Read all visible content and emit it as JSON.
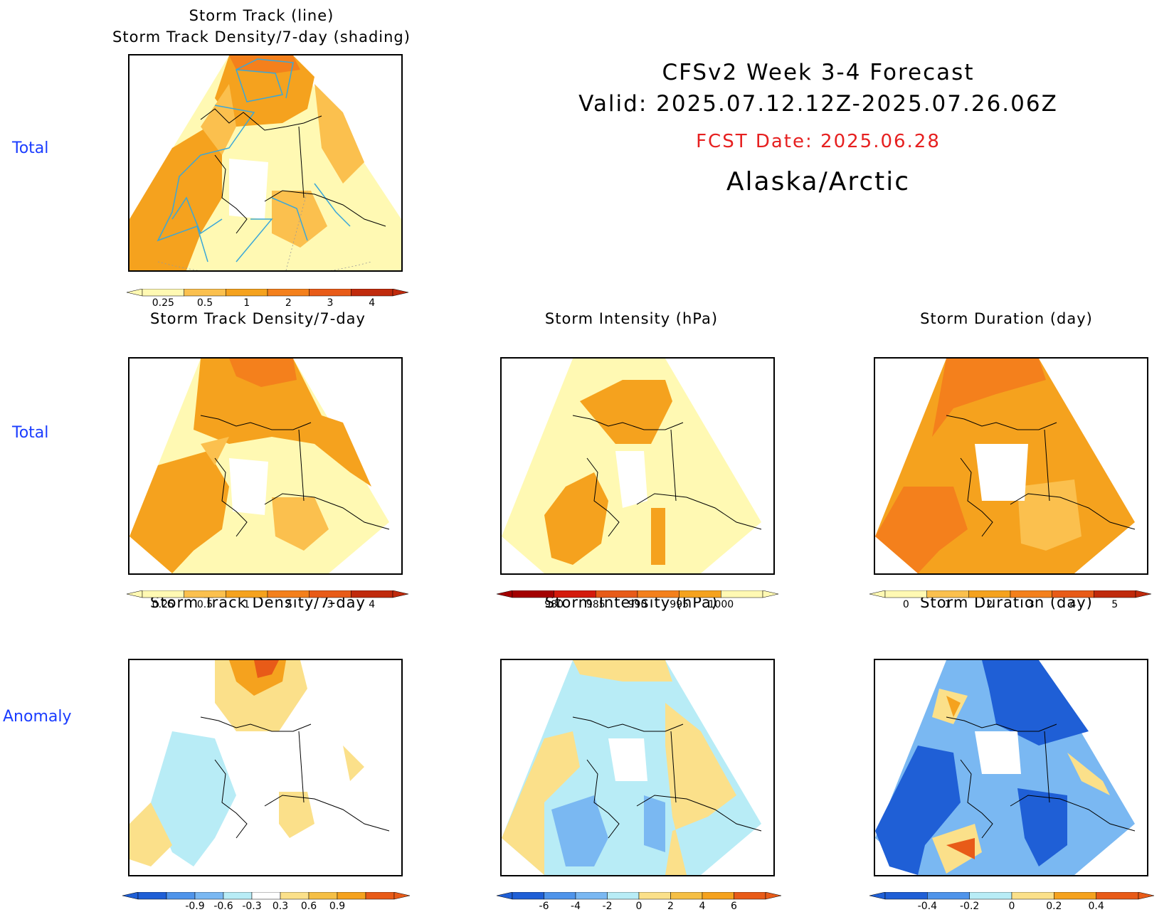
{
  "header": {
    "line1": "CFSv2 Week 3-4 Forecast",
    "line2": "Valid: 2025.07.12.12Z-2025.07.26.06Z",
    "fcst": "FCST Date: 2025.06.28",
    "region": "Alaska/Arctic"
  },
  "rows": {
    "r1": "Total",
    "r2": "Total",
    "r3": "Anomaly"
  },
  "panels": {
    "p1": {
      "title1": "Storm Track (line)",
      "title2": "Storm Track Density/7-day (shading)"
    },
    "p2": {
      "title": "Storm Track Density/7-day"
    },
    "p3": {
      "title": "Storm Intensity (hPa)"
    },
    "p4": {
      "title": "Storm Duration (day)"
    },
    "p5": {
      "title": "Storm Track Density/7-day"
    },
    "p6": {
      "title": "Storm Intensity (hPa)"
    },
    "p7": {
      "title": "Storm Duration (day)"
    }
  },
  "colorbars": {
    "density": {
      "ticks": [
        "0.25",
        "0.5",
        "1",
        "2",
        "3",
        "4"
      ],
      "colors": [
        "#fff9b3",
        "#fbc04e",
        "#f5a21e",
        "#f4801c",
        "#e85b18",
        "#c02a0c"
      ]
    },
    "intensity": {
      "ticks": [
        "980",
        "985",
        "990",
        "995",
        "1000"
      ],
      "colors": [
        "#a30000",
        "#d41a0c",
        "#e85b18",
        "#f4801c",
        "#f5a21e",
        "#fff9b3"
      ]
    },
    "duration": {
      "ticks": [
        "0",
        "1",
        "2",
        "3",
        "4",
        "5"
      ],
      "colors": [
        "#fff9b3",
        "#fbc04e",
        "#f5a21e",
        "#f4801c",
        "#e85b18",
        "#c02a0c"
      ]
    },
    "density_anom": {
      "ticks": [
        "-0.9",
        "-0.6",
        "-0.3",
        "0.3",
        "0.6",
        "0.9"
      ],
      "colors": [
        "#1f5fd6",
        "#4f94ea",
        "#7ab8f2",
        "#b8ecf6",
        "#ffffff",
        "#fbe08a",
        "#f5bf45",
        "#f5a21e",
        "#e85b18"
      ]
    },
    "intensity_anom": {
      "ticks": [
        "-6",
        "-4",
        "-2",
        "0",
        "2",
        "4",
        "6"
      ],
      "colors": [
        "#1f5fd6",
        "#4f94ea",
        "#7ab8f2",
        "#b8ecf6",
        "#fbe08a",
        "#f5bf45",
        "#f5a21e",
        "#e85b18"
      ]
    },
    "duration_anom": {
      "ticks": [
        "-0.4",
        "-0.2",
        "0",
        "0.2",
        "0.4"
      ],
      "colors": [
        "#1f5fd6",
        "#4f94ea",
        "#b8ecf6",
        "#fbe08a",
        "#f5a21e",
        "#e85b18"
      ]
    }
  },
  "colors": {
    "row_label": "#1a3cff",
    "fcst_date": "#e62020",
    "storm_track_line": "#3aa7d8"
  }
}
